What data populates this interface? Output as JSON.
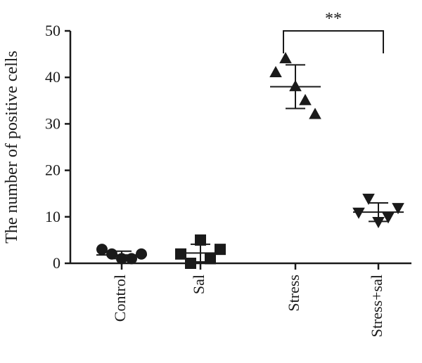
{
  "chart_data": {
    "type": "scatter",
    "ylabel": "The number of positive cells",
    "xlabel": "",
    "ylim": [
      0,
      50
    ],
    "yticks": [
      0,
      10,
      20,
      30,
      40,
      50
    ],
    "grid": false,
    "categories": [
      "Control",
      "Sal",
      "Stress",
      "Stress+sal"
    ],
    "groups": [
      {
        "category": "Control",
        "marker": "circle",
        "points": [
          3,
          2,
          1,
          1,
          2
        ],
        "mean": 1.8,
        "sd": 0.8
      },
      {
        "category": "Sal",
        "marker": "square",
        "points": [
          2,
          0,
          5,
          1,
          3
        ],
        "mean": 2.2,
        "sd": 1.9
      },
      {
        "category": "Stress",
        "marker": "triangle-up",
        "points": [
          41,
          44,
          38,
          35,
          32
        ],
        "mean": 38,
        "sd": 4.7
      },
      {
        "category": "Stress+sal",
        "marker": "triangle-down",
        "points": [
          11,
          14,
          9,
          10,
          12
        ],
        "mean": 11,
        "sd": 2
      }
    ],
    "annotations": [
      {
        "type": "significance",
        "from": "Stress",
        "to": "Stress+sal",
        "label": "**",
        "y": 50
      }
    ]
  }
}
